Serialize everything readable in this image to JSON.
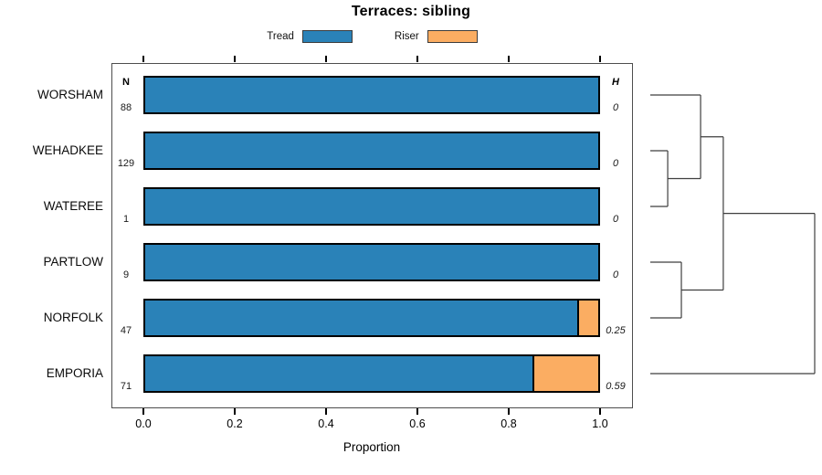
{
  "chart_data": {
    "type": "bar",
    "orientation": "horizontal-stacked",
    "title": "Terraces: sibling",
    "xlabel": "Proportion",
    "x_ticks": [
      "0.0",
      "0.2",
      "0.4",
      "0.6",
      "0.8",
      "1.0"
    ],
    "xlim": [
      0,
      1
    ],
    "grid": false,
    "legend_position": "top-center",
    "categories": [
      "WORSHAM",
      "WEHADKEE",
      "WATEREE",
      "PARTLOW",
      "NORFOLK",
      "EMPORIA"
    ],
    "n_header": "N",
    "h_header": "H",
    "n_values": [
      "88",
      "129",
      "1",
      "9",
      "47",
      "71"
    ],
    "h_values": [
      "0",
      "0",
      "0",
      "0",
      "0.25",
      "0.59"
    ],
    "series": [
      {
        "name": "Tread",
        "color": "#2A82B8",
        "values": [
          1,
          1,
          1,
          1,
          0.957,
          0.859
        ]
      },
      {
        "name": "Riser",
        "color": "#FBAD62",
        "values": [
          0,
          0,
          0,
          0,
          0.043,
          0.141
        ]
      }
    ],
    "dendrogram": {
      "leaves": [
        "WORSHAM",
        "WEHADKEE",
        "WATEREE",
        "PARTLOW",
        "NORFOLK",
        "EMPORIA"
      ],
      "merges": [
        {
          "a": {
            "leaf": 1
          },
          "b": {
            "leaf": 2
          },
          "height": 0.106
        },
        {
          "a": {
            "leaf": 0
          },
          "b": {
            "merge": 0
          },
          "height": 0.306
        },
        {
          "a": {
            "leaf": 3
          },
          "b": {
            "leaf": 4
          },
          "height": 0.189
        },
        {
          "a": {
            "merge": 1
          },
          "b": {
            "merge": 2
          },
          "height": 0.444
        },
        {
          "a": {
            "merge": 3
          },
          "b": {
            "leaf": 5
          },
          "height": 1.0
        }
      ]
    },
    "colors": {
      "bar_border": "#000000",
      "box_border": "#4d4d4d",
      "dendrogram_line": "#3f3f3f"
    }
  }
}
